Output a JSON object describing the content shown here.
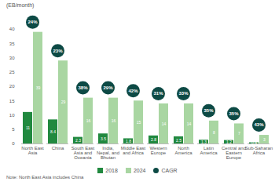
{
  "chart_data": {
    "type": "bar",
    "y_label": "(EB/month)",
    "categories": [
      "North East Asia",
      "China",
      "South East Asia and Oceania",
      "India, Nepal, and Bhutan",
      "Middle East and Africa",
      "Western Europe",
      "North America",
      "Latin America",
      "Central and Eastern Europe",
      "Sub-Saharan Africa"
    ],
    "series": [
      {
        "name": "2018",
        "color": "#21893f",
        "values": [
          11,
          8.4,
          2.3,
          3.5,
          1.8,
          2.8,
          2.5,
          1.3,
          1.2,
          0.4
        ]
      },
      {
        "name": "2024",
        "color": "#a9d6a2",
        "values": [
          39,
          29,
          16,
          16,
          15,
          14,
          14,
          8,
          7,
          3
        ]
      }
    ],
    "cagr": {
      "name": "CAGR",
      "color": "#0d4a45",
      "values": [
        24,
        23,
        38,
        29,
        42,
        31,
        33,
        35,
        35,
        43
      ],
      "value_labels": [
        "24%",
        "23%",
        "38%",
        "29%",
        "42%",
        "31%",
        "33%",
        "35%",
        "35%",
        "43%"
      ]
    },
    "ylim": [
      0,
      40
    ],
    "yticks": [
      0,
      5,
      10,
      15,
      20,
      25,
      30,
      35,
      40
    ],
    "grid": false,
    "data_labels": true,
    "legend": "bottom",
    "note": "Note: North East Asia includes China"
  }
}
